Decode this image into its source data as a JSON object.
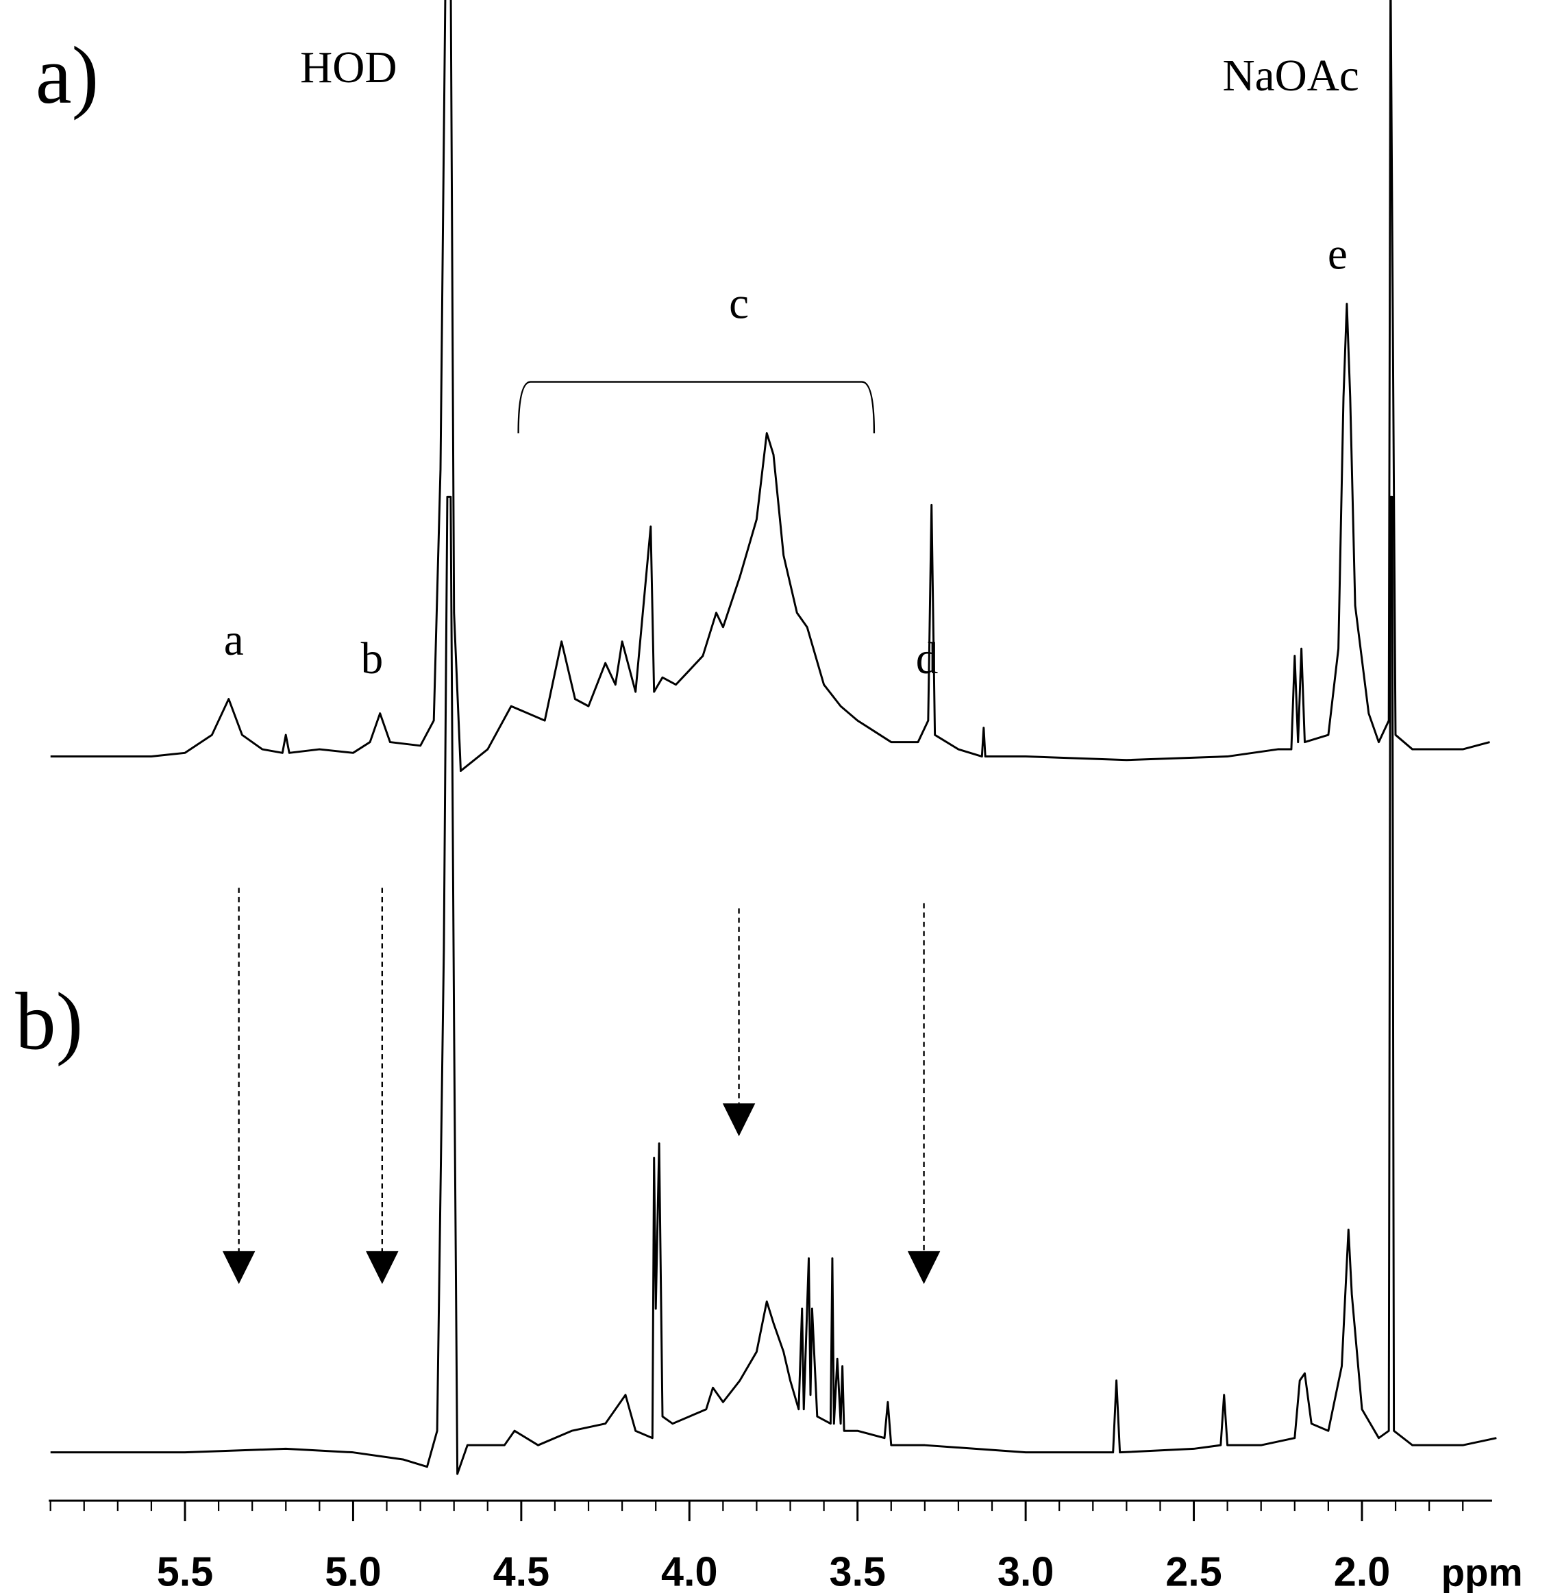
{
  "chart_data": {
    "type": "line",
    "xlabel": "ppm",
    "xlim": [
      5.905,
      1.613
    ],
    "xticks": [
      5.5,
      {
        "value": 5,
        "label": "5.0"
      },
      4.5,
      {
        "value": 4,
        "label": "4.0"
      },
      3.5,
      {
        "value": 3,
        "label": "3.0"
      },
      2.5,
      {
        "value": 2,
        "label": "2.0"
      }
    ],
    "xminorticks": [
      5.9,
      5.8,
      5.7,
      5.6,
      5.4,
      5.3,
      5.2,
      5.1,
      4.9,
      4.8,
      4.7,
      4.6,
      4.4,
      4.3,
      4.2,
      4.1,
      3.9,
      3.8,
      3.7,
      3.6,
      3.4,
      3.3,
      3.2,
      3.1,
      2.9,
      2.8,
      2.7,
      2.6,
      2.4,
      2.3,
      2.2,
      2.1,
      1.9,
      1.8,
      1.7
    ],
    "series": [
      {
        "name": "a)",
        "color": "#000000",
        "ylim": [
          -9,
          105
        ],
        "x": [
          5.9,
          5.6,
          5.5,
          5.42,
          5.37,
          5.33,
          5.27,
          5.21,
          5.2,
          5.19,
          5.1,
          5.0,
          4.95,
          4.92,
          4.89,
          4.8,
          4.76,
          4.74,
          4.725,
          4.71,
          4.7,
          4.68,
          4.6,
          4.53,
          4.48,
          4.43,
          4.38,
          4.34,
          4.3,
          4.25,
          4.22,
          4.2,
          4.16,
          4.115,
          4.105,
          4.08,
          4.04,
          4.0,
          3.96,
          3.92,
          3.9,
          3.85,
          3.8,
          3.77,
          3.75,
          3.72,
          3.68,
          3.65,
          3.6,
          3.55,
          3.5,
          3.4,
          3.32,
          3.29,
          3.28,
          3.27,
          3.2,
          3.13,
          3.125,
          3.12,
          3.0,
          2.7,
          2.4,
          2.25,
          2.21,
          2.2,
          2.19,
          2.18,
          2.17,
          2.1,
          2.07,
          2.055,
          2.045,
          2.035,
          2.02,
          1.98,
          1.95,
          1.92,
          1.915,
          1.905,
          1.9,
          1.85,
          1.8,
          1.7,
          1.62
        ],
        "values": [
          0,
          0,
          0.5,
          3,
          8,
          3,
          1,
          0.5,
          3,
          0.5,
          1,
          0.5,
          2,
          6,
          2,
          1.5,
          5,
          40,
          110,
          110,
          20,
          -2,
          1,
          7,
          6,
          5,
          16,
          8,
          7,
          13,
          10,
          16,
          9,
          32,
          9,
          11,
          10,
          12,
          14,
          20,
          18,
          25,
          33,
          45,
          42,
          28,
          20,
          18,
          10,
          7,
          5,
          2,
          2,
          5,
          35,
          3,
          1,
          0,
          4,
          0,
          0,
          -0.5,
          0,
          1,
          1,
          14,
          2,
          15,
          2,
          3,
          15,
          50,
          63,
          50,
          21,
          6,
          2,
          5,
          110,
          37,
          3,
          1,
          1,
          1,
          2
        ]
      },
      {
        "name": "b)",
        "color": "#000000",
        "ylim": [
          -5,
          145
        ],
        "x": [
          5.9,
          5.5,
          5.2,
          5.0,
          4.85,
          4.78,
          4.75,
          4.73,
          4.72,
          4.71,
          4.7,
          4.69,
          4.66,
          4.55,
          4.52,
          4.45,
          4.35,
          4.25,
          4.19,
          4.16,
          4.11,
          4.105,
          4.1,
          4.09,
          4.08,
          4.05,
          4.0,
          3.95,
          3.93,
          3.9,
          3.85,
          3.8,
          3.77,
          3.75,
          3.72,
          3.7,
          3.675,
          3.665,
          3.66,
          3.645,
          3.64,
          3.635,
          3.62,
          3.58,
          3.575,
          3.57,
          3.56,
          3.55,
          3.545,
          3.54,
          3.5,
          3.42,
          3.41,
          3.4,
          3.3,
          3.0,
          2.74,
          2.73,
          2.72,
          2.5,
          2.42,
          2.41,
          2.4,
          2.3,
          2.2,
          2.185,
          2.17,
          2.15,
          2.1,
          2.06,
          2.04,
          2.03,
          2.0,
          1.95,
          1.92,
          1.915,
          1.91,
          1.905,
          1.85,
          1.7,
          1.6
        ],
        "values": [
          0,
          0,
          0.5,
          0,
          -1,
          -2,
          3,
          70,
          133,
          133,
          60,
          -3,
          1,
          1,
          3,
          1,
          3,
          4,
          8,
          3,
          2,
          41,
          20,
          43,
          5,
          4,
          5,
          6,
          9,
          7,
          10,
          14,
          21,
          18,
          14,
          10,
          6,
          20,
          6,
          27,
          8,
          20,
          5,
          4,
          27,
          4,
          13,
          4,
          12,
          3,
          3,
          2,
          7,
          1,
          1,
          0,
          0,
          10,
          0,
          0.5,
          1,
          8,
          1,
          1,
          2,
          10,
          11,
          4,
          3,
          12,
          31,
          22,
          6,
          2,
          3,
          133,
          133,
          3,
          1,
          1,
          2
        ]
      }
    ],
    "annotations": [
      "HOD",
      "NaOAc",
      "a",
      "b",
      "c",
      "d",
      "e"
    ]
  }
}
